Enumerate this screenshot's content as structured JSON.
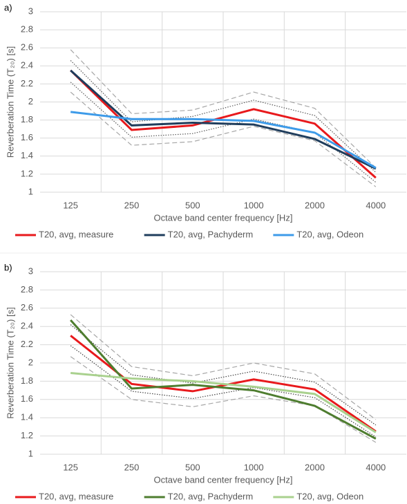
{
  "chart_data": [
    {
      "type": "line",
      "label": "a)",
      "categories": [
        "125",
        "250",
        "500",
        "1000",
        "2000",
        "4000"
      ],
      "x_label": "Octave band center frequency [Hz]",
      "y_label": "Reverberation Time (T₂₀) [s]",
      "ylim": [
        1,
        3
      ],
      "yticks": [
        1,
        1.2,
        1.4,
        1.6,
        1.8,
        2,
        2.2,
        2.4,
        2.6,
        2.8,
        3
      ],
      "grid": true,
      "legend": "bottom",
      "series": [
        {
          "color": "#a6a6a6",
          "style": "dashed",
          "values": [
            2.58,
            1.87,
            1.91,
            2.11,
            1.93,
            1.27
          ]
        },
        {
          "color": "#a6a6a6",
          "style": "dashed",
          "values": [
            2.11,
            1.52,
            1.56,
            1.73,
            1.57,
            1.06
          ]
        },
        {
          "color": "#595959",
          "style": "dotted",
          "values": [
            2.46,
            1.78,
            1.84,
            2.02,
            1.85,
            1.22
          ]
        },
        {
          "color": "#595959",
          "style": "dotted",
          "values": [
            2.22,
            1.61,
            1.65,
            1.81,
            1.66,
            1.11
          ]
        },
        {
          "name": "T20, avg, measure",
          "color": "#e8191c",
          "style": "solid",
          "values": [
            2.35,
            1.69,
            1.74,
            1.92,
            1.76,
            1.16
          ]
        },
        {
          "name": "T20, avg, Pachyderm",
          "color": "#1f3d5c",
          "style": "solid",
          "values": [
            2.35,
            1.74,
            1.77,
            1.75,
            1.59,
            1.26
          ]
        },
        {
          "name": "T20, avg, Odeon",
          "color": "#3d9be9",
          "style": "solid",
          "values": [
            1.89,
            1.81,
            1.81,
            1.79,
            1.66,
            1.27
          ]
        }
      ]
    },
    {
      "type": "line",
      "label": "b)",
      "categories": [
        "125",
        "250",
        "500",
        "1000",
        "2000",
        "4000"
      ],
      "x_label": "Octave band center frequency [Hz]",
      "y_label": "Reverberation Time (T₂₀) [s]",
      "ylim": [
        1,
        3
      ],
      "yticks": [
        1,
        1.2,
        1.4,
        1.6,
        1.8,
        2,
        2.2,
        2.4,
        2.6,
        2.8,
        3
      ],
      "grid": true,
      "legend": "bottom",
      "series": [
        {
          "color": "#a6a6a6",
          "style": "dashed",
          "values": [
            2.53,
            1.96,
            1.86,
            2.0,
            1.88,
            1.38
          ]
        },
        {
          "color": "#a6a6a6",
          "style": "dashed",
          "values": [
            2.07,
            1.6,
            1.52,
            1.64,
            1.53,
            1.13
          ]
        },
        {
          "color": "#404040",
          "style": "dotted",
          "values": [
            2.42,
            1.87,
            1.78,
            1.91,
            1.79,
            1.32
          ]
        },
        {
          "color": "#404040",
          "style": "dotted",
          "values": [
            2.19,
            1.69,
            1.61,
            1.73,
            1.62,
            1.19
          ]
        },
        {
          "name": "T20, avg, measure",
          "color": "#e8191c",
          "style": "solid",
          "values": [
            2.3,
            1.77,
            1.69,
            1.82,
            1.71,
            1.25
          ]
        },
        {
          "name": "T20, avg, Pachyderm",
          "color": "#4e7d2f",
          "style": "solid",
          "values": [
            2.47,
            1.72,
            1.76,
            1.7,
            1.53,
            1.17
          ]
        },
        {
          "name": "T20, avg, Odeon",
          "color": "#a9d18e",
          "style": "solid",
          "values": [
            1.89,
            1.83,
            1.8,
            1.74,
            1.66,
            1.24
          ]
        }
      ]
    }
  ]
}
